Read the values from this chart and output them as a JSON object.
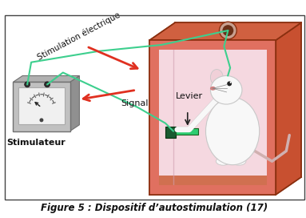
{
  "title": "Figure 5 : Dispositif d’autostimulation (17)",
  "title_fontsize": 8.5,
  "bg_color": "#ffffff",
  "border_color": "#444444",
  "wire_color": "#3dcf8e",
  "arrow_color": "#e03020",
  "box_front_color": "#e07060",
  "box_side_color": "#c85030",
  "box_top_color": "#d06040",
  "box_interior_color": "#f5d8e0",
  "box_floor_color": "#d07050",
  "box_edge_color": "#8b3010",
  "hole_color": "#c8a090",
  "hole_inner_color": "#6a3018",
  "stim_face_color": "#c0c0c0",
  "stim_side_color": "#909090",
  "stim_top_color": "#b0b0b0",
  "stim_edge_color": "#707070",
  "gauge_face_color": "#f0f0f0",
  "gauge_edge_color": "#aaaaaa",
  "needle_color": "#222222",
  "dot_color": "#303030",
  "lever_btn_color": "#1a5a30",
  "lever_bar_color": "#2ecc71",
  "mouse_body_color": "#f8f8f8",
  "mouse_edge_color": "#c8c8c8",
  "mouse_nose_color": "#d08080",
  "mouse_eye_color": "#222222",
  "tail_color": "#d0b0b0",
  "label_levier": "Levier",
  "label_signal": "Signal",
  "label_stimulateur": "Stimulateur",
  "label_stimulation": "Stimulation électrique"
}
